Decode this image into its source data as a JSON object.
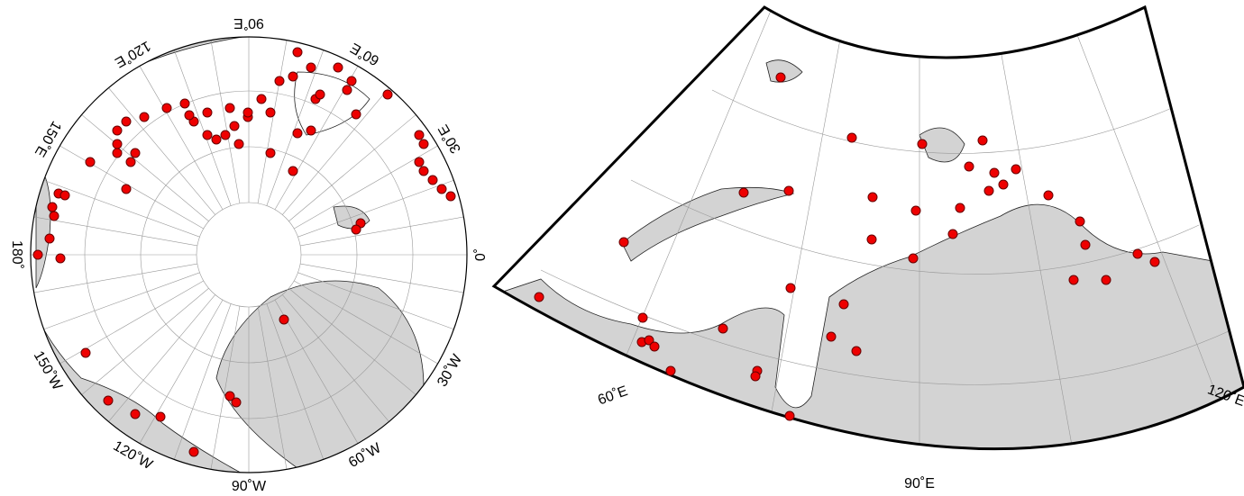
{
  "left_map": {
    "labels": [
      "90˚E",
      "60˚E",
      "30˚E",
      "0˚",
      "30˚W",
      "60˚W",
      "90˚W",
      "120˚W",
      "150˚W",
      "180˚",
      "150˚E",
      "120˚E"
    ]
  },
  "right_map": {
    "labels": [
      "60˚E",
      "90˚E",
      "120˚E"
    ]
  }
}
